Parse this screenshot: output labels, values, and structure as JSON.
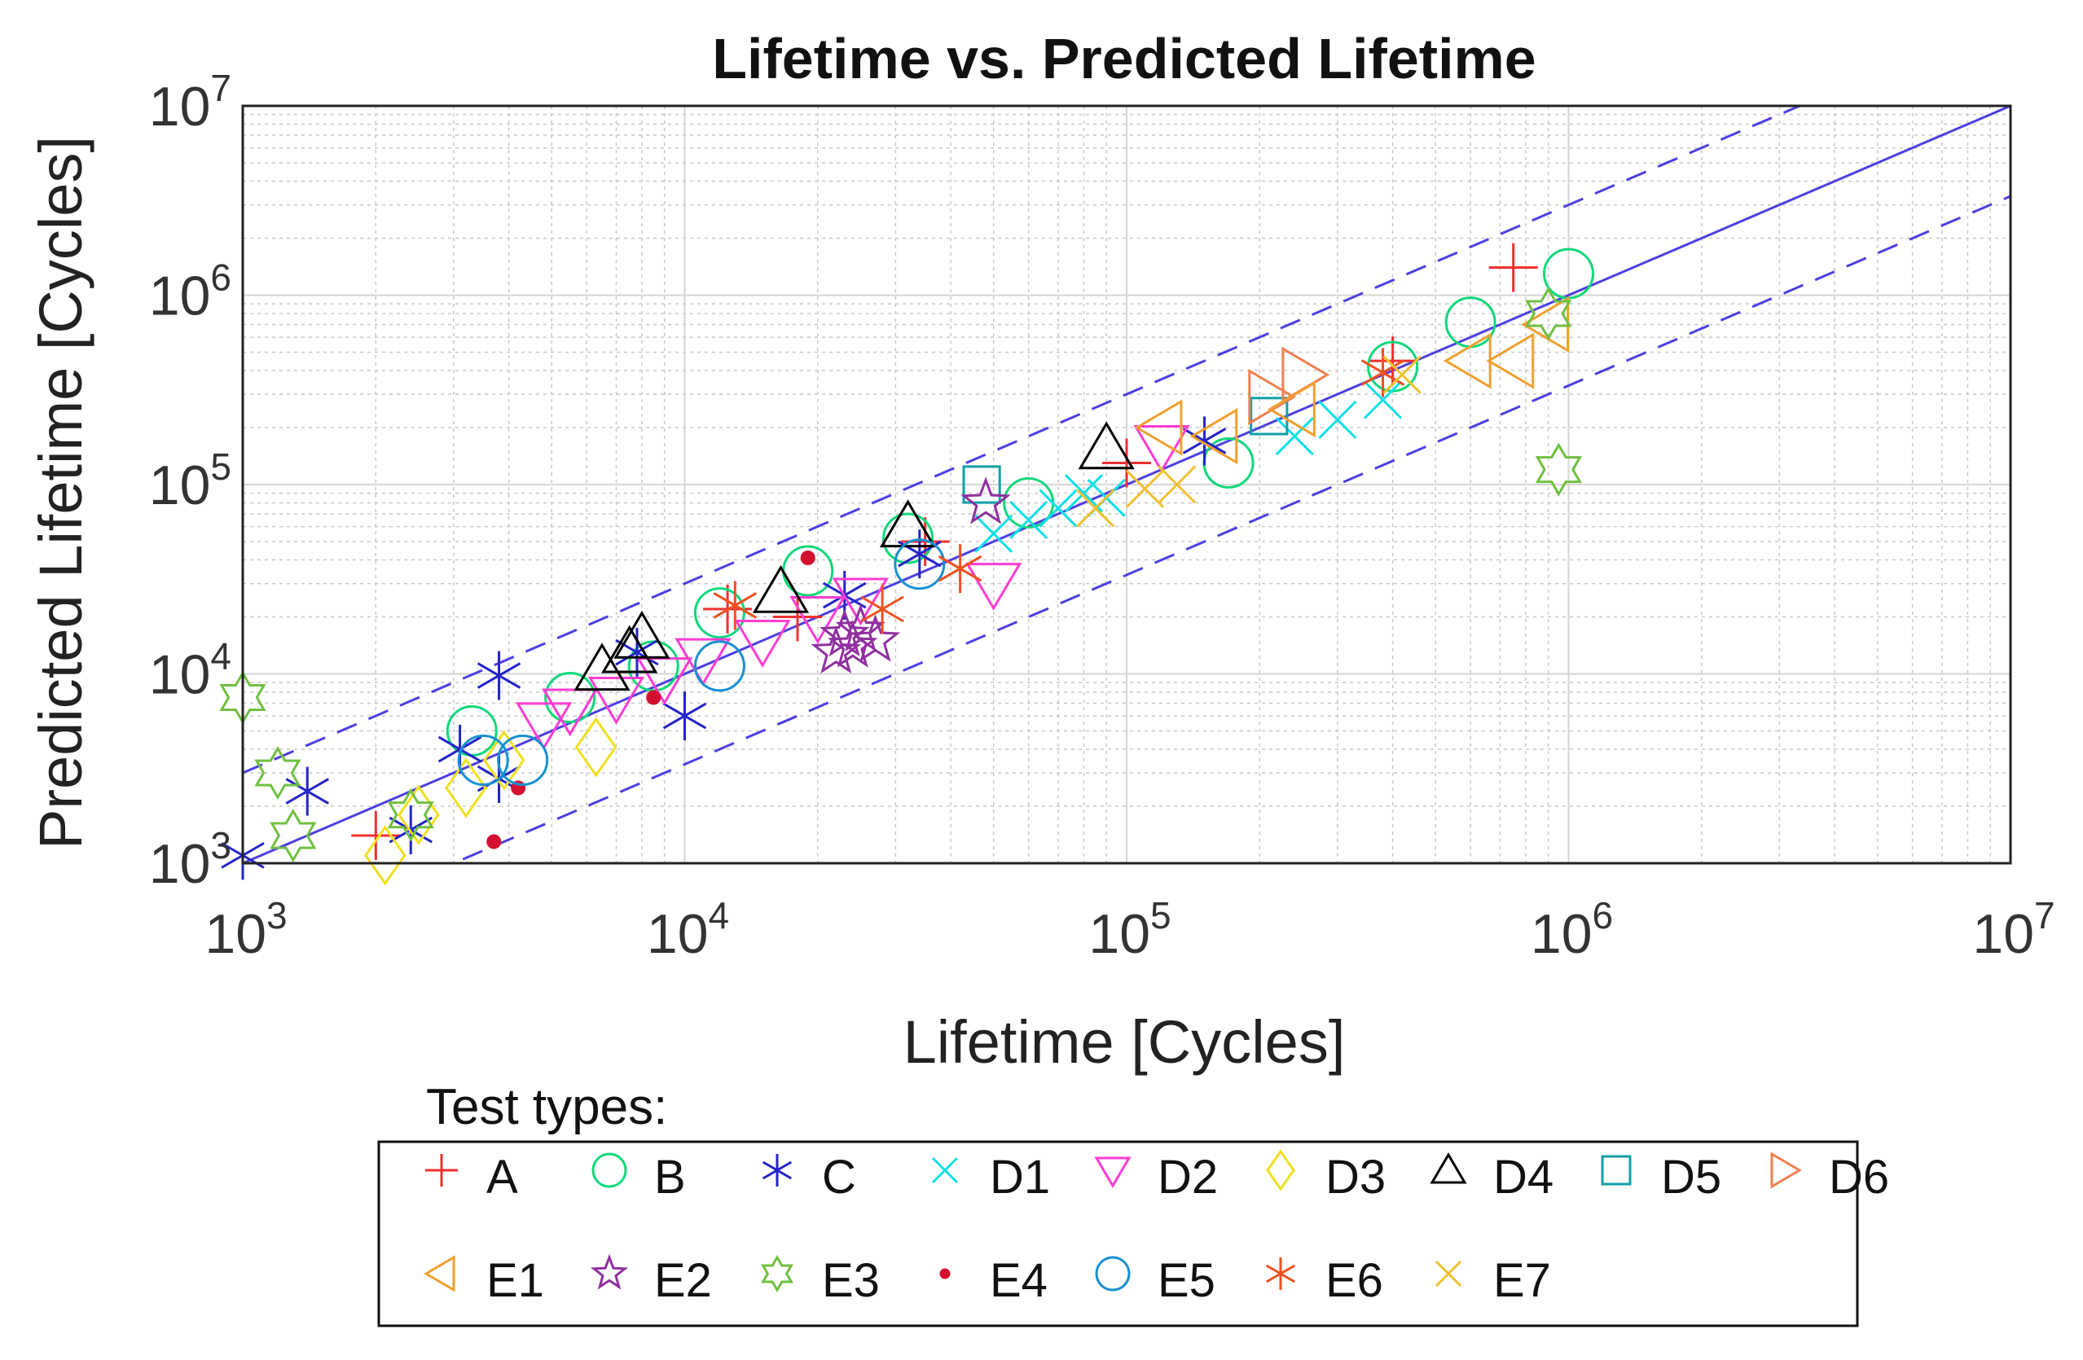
{
  "chart_data": {
    "type": "scatter",
    "title": "Lifetime vs. Predicted Lifetime",
    "xlabel": "Lifetime [Cycles]",
    "ylabel": "Predicted Lifetime [Cycles]",
    "x_scale": "log",
    "y_scale": "log",
    "xlim": [
      1000,
      10000000
    ],
    "ylim": [
      1000,
      10000000
    ],
    "x_ticks": [
      {
        "value": 1000,
        "base": "10",
        "exp": "3"
      },
      {
        "value": 10000,
        "base": "10",
        "exp": "4"
      },
      {
        "value": 100000,
        "base": "10",
        "exp": "5"
      },
      {
        "value": 1000000,
        "base": "10",
        "exp": "6"
      },
      {
        "value": 10000000,
        "base": "10",
        "exp": "7"
      }
    ],
    "y_ticks": [
      {
        "value": 1000,
        "base": "10",
        "exp": "3"
      },
      {
        "value": 10000,
        "base": "10",
        "exp": "4"
      },
      {
        "value": 100000,
        "base": "10",
        "exp": "5"
      },
      {
        "value": 1000000,
        "base": "10",
        "exp": "6"
      },
      {
        "value": 10000000,
        "base": "10",
        "exp": "7"
      }
    ],
    "grid": true,
    "reference_lines": [
      {
        "style": "solid",
        "factor": 1,
        "color": "#4d3fe0"
      },
      {
        "style": "dashed",
        "factor": 3,
        "color": "#4d3fe0"
      },
      {
        "style": "dashed",
        "factor": 0.3333,
        "color": "#4d3fe0"
      }
    ],
    "legend": {
      "title": "Test types:",
      "placement": "bottom"
    },
    "series": [
      {
        "name": "A",
        "marker": "plus",
        "color": "#ee3030",
        "points": [
          [
            2000,
            1400
          ],
          [
            12500,
            22000
          ],
          [
            18000,
            20000
          ],
          [
            35000,
            50000
          ],
          [
            100000,
            130000
          ],
          [
            400000,
            450000
          ],
          [
            750000,
            1400000
          ]
        ]
      },
      {
        "name": "B",
        "marker": "circle",
        "color": "#10d87a",
        "points": [
          [
            3300,
            5000
          ],
          [
            5500,
            7500
          ],
          [
            8500,
            11000
          ],
          [
            12000,
            21000
          ],
          [
            19000,
            35000
          ],
          [
            32000,
            52000
          ],
          [
            60000,
            80000
          ],
          [
            170000,
            130000
          ],
          [
            400000,
            420000
          ],
          [
            600000,
            720000
          ],
          [
            1000000,
            1300000
          ]
        ]
      },
      {
        "name": "C",
        "marker": "star6",
        "color": "#2424c8",
        "points": [
          [
            1000,
            1100
          ],
          [
            1400,
            2400
          ],
          [
            2400,
            1500
          ],
          [
            3100,
            4000
          ],
          [
            3800,
            9800
          ],
          [
            3800,
            2800
          ],
          [
            7800,
            13000
          ],
          [
            10000,
            6000
          ],
          [
            23000,
            26000
          ],
          [
            34000,
            43000
          ],
          [
            150000,
            170000
          ]
        ]
      },
      {
        "name": "D1",
        "marker": "x",
        "color": "#10e0e8",
        "points": [
          [
            50000,
            55000
          ],
          [
            60000,
            65000
          ],
          [
            70000,
            75000
          ],
          [
            80000,
            90000
          ],
          [
            90000,
            85000
          ],
          [
            240000,
            180000
          ],
          [
            300000,
            220000
          ],
          [
            380000,
            280000
          ]
        ]
      },
      {
        "name": "D2",
        "marker": "tri-down",
        "color": "#ff3cd2",
        "points": [
          [
            4800,
            5500
          ],
          [
            5500,
            6500
          ],
          [
            7000,
            7500
          ],
          [
            9000,
            9500
          ],
          [
            11000,
            12000
          ],
          [
            15000,
            15000
          ],
          [
            20000,
            20000
          ],
          [
            25000,
            25000
          ],
          [
            50000,
            30000
          ],
          [
            120000,
            160000
          ]
        ]
      },
      {
        "name": "D3",
        "marker": "diamond",
        "color": "#f0e020",
        "points": [
          [
            2100,
            1100
          ],
          [
            2500,
            1800
          ],
          [
            3200,
            2500
          ],
          [
            3900,
            3500
          ],
          [
            6300,
            4100
          ]
        ]
      },
      {
        "name": "D4",
        "marker": "tri-up",
        "color": "#000000",
        "points": [
          [
            6500,
            10500
          ],
          [
            7500,
            13000
          ],
          [
            8000,
            15500
          ],
          [
            16500,
            27000
          ],
          [
            32000,
            60000
          ],
          [
            90000,
            155000
          ]
        ]
      },
      {
        "name": "D5",
        "marker": "square",
        "color": "#10a0a8",
        "points": [
          [
            47000,
            100000
          ],
          [
            210000,
            230000
          ]
        ]
      },
      {
        "name": "D6",
        "marker": "tri-right",
        "color": "#f08050",
        "points": [
          [
            250000,
            380000
          ],
          [
            210000,
            290000
          ]
        ]
      },
      {
        "name": "E1",
        "marker": "tri-left",
        "color": "#f0a030",
        "points": [
          [
            120000,
            200000
          ],
          [
            160000,
            180000
          ],
          [
            240000,
            250000
          ],
          [
            600000,
            450000
          ],
          [
            750000,
            450000
          ],
          [
            900000,
            700000
          ]
        ]
      },
      {
        "name": "E2",
        "marker": "star5",
        "color": "#9030a0",
        "points": [
          [
            22000,
            13000
          ],
          [
            23000,
            16000
          ],
          [
            24000,
            14000
          ],
          [
            25000,
            17000
          ],
          [
            27000,
            15000
          ],
          [
            48000,
            80000
          ]
        ]
      },
      {
        "name": "E3",
        "marker": "star6-hollow",
        "color": "#70c040",
        "points": [
          [
            1000,
            7500
          ],
          [
            1200,
            3000
          ],
          [
            1300,
            1400
          ],
          [
            2400,
            1800
          ],
          [
            900000,
            800000
          ],
          [
            950000,
            120000
          ]
        ]
      },
      {
        "name": "E4",
        "marker": "dot",
        "color": "#d41030",
        "points": [
          [
            3700,
            1300
          ],
          [
            4200,
            2500
          ],
          [
            8500,
            7500
          ],
          [
            19000,
            41000
          ]
        ]
      },
      {
        "name": "E5",
        "marker": "circle",
        "color": "#1890d0",
        "points": [
          [
            3500,
            3500
          ],
          [
            4300,
            3500
          ],
          [
            12000,
            11000
          ],
          [
            34000,
            38000
          ]
        ]
      },
      {
        "name": "E6",
        "marker": "star6",
        "color": "#f05020",
        "points": [
          [
            13000,
            23000
          ],
          [
            28000,
            22000
          ],
          [
            42000,
            36000
          ],
          [
            380000,
            390000
          ]
        ]
      },
      {
        "name": "E7",
        "marker": "x",
        "color": "#f0c030",
        "points": [
          [
            85000,
            75000
          ],
          [
            110000,
            95000
          ],
          [
            130000,
            100000
          ],
          [
            420000,
            380000
          ]
        ]
      }
    ]
  }
}
